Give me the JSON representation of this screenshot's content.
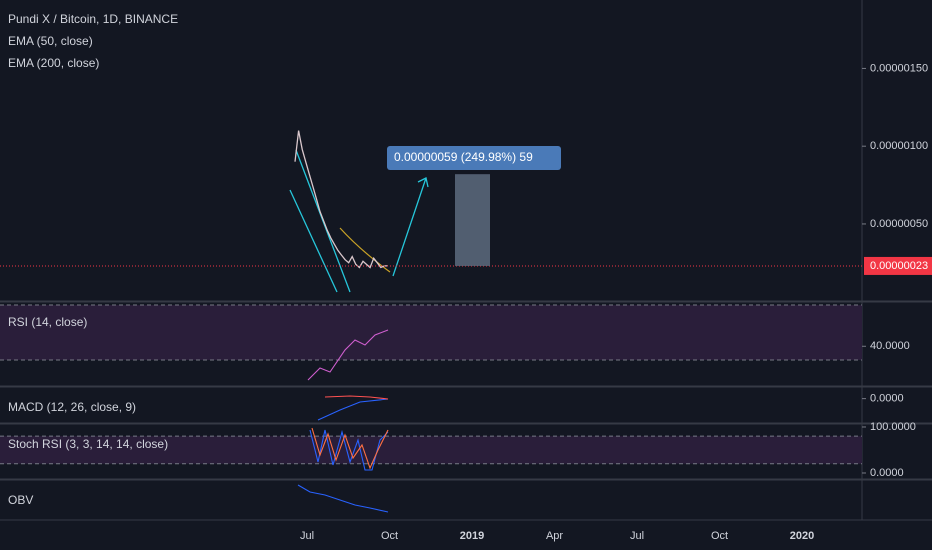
{
  "header": {
    "title": "Pundi X / Bitcoin, 1D, BINANCE",
    "indicators": [
      "EMA (50, close)",
      "EMA (200, close)"
    ]
  },
  "price": {
    "type": "line",
    "color": "#d9c7cc",
    "ylim": [
      1.1e-08,
      1.94e-06
    ],
    "values": [
      9e-07,
      1.1e-06,
      9.8e-07,
      9e-07,
      8.2e-07,
      7.4e-07,
      6.6e-07,
      5.8e-07,
      5.2e-07,
      4.6e-07,
      4.1e-07,
      3.7e-07,
      3.3e-07,
      3e-07,
      2.7e-07,
      2.5e-07,
      2.9e-07,
      2.4e-07,
      2.2e-07,
      2.6e-07,
      2.4e-07,
      2.2e-07,
      2.8e-07,
      2.5e-07,
      2.2e-07,
      2.3e-07,
      2.3e-07
    ],
    "yticks": [
      {
        "value": 1.5e-06,
        "label": "0.00000150"
      },
      {
        "value": 1e-06,
        "label": "0.00000100"
      },
      {
        "value": 5e-07,
        "label": "0.00000050"
      }
    ],
    "current": {
      "value": 2.3e-07,
      "label": "0.00000023",
      "color": "#f23645"
    }
  },
  "measure": {
    "value": 5.9e-07,
    "label": "0.00000059 (249.98%) 59"
  },
  "panes": [
    {
      "title": "RSI (14, close)",
      "ylim": [
        11.8,
        71.5
      ],
      "ticks": [
        {
          "value": 40,
          "label": "40.0000"
        }
      ],
      "bands": [
        30,
        70
      ]
    },
    {
      "title": "MACD (12, 26, close, 9)",
      "ylim": [
        -2.2,
        1
      ],
      "ticks": [
        {
          "value": 0,
          "label": "0.0000"
        }
      ],
      "bands": []
    },
    {
      "title": "Stoch RSI (3, 3, 14, 14, close)",
      "ylim": [
        -10.9,
        104.3
      ],
      "ticks": [
        {
          "value": 100,
          "label": "100.0000"
        },
        {
          "value": 0,
          "label": "0.0000"
        }
      ],
      "bands": [
        20,
        80
      ]
    },
    {
      "title": "OBV",
      "ylim": [
        0,
        1
      ],
      "ticks": [],
      "bands": []
    }
  ],
  "time_axis": {
    "ticks": [
      "Jul",
      "Oct",
      "2019",
      "Apr",
      "Jul",
      "Oct",
      "2020"
    ]
  }
}
